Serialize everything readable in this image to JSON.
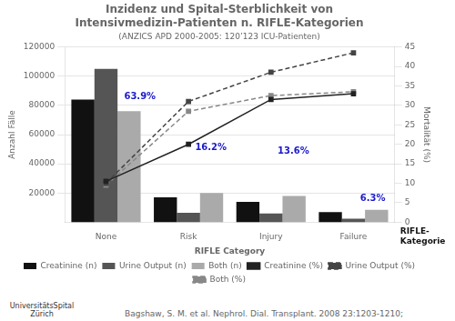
{
  "chart_data": {
    "type": "bar",
    "title": [
      "Inzidenz und Spital-Sterblichkeit von",
      "Intensivmedizin-Patienten n. RIFLE-Kategorien"
    ],
    "subtitle": "(ANZICS APD 2000-2005: 120’123 ICU-Patienten)",
    "categories": [
      "None",
      "Risk",
      "Injury",
      "Failure"
    ],
    "xlabel": "RIFLE Category",
    "ylabel": "Anzahl Fälle",
    "y2label": "Mortalität (%)",
    "series": [
      {
        "name": "Creatinine (n)",
        "type": "bar",
        "color": "#111111",
        "values": [
          84000,
          17000,
          14000,
          7000
        ]
      },
      {
        "name": "Urine Output (n)",
        "type": "bar",
        "color": "#555555",
        "values": [
          105000,
          6500,
          6000,
          2500
        ]
      },
      {
        "name": "Both (n)",
        "type": "bar",
        "color": "#aaaaaa",
        "values": [
          76000,
          20000,
          18000,
          8500
        ]
      },
      {
        "name": "Creatinine (%)",
        "type": "line",
        "axis": "y2",
        "color": "#222222",
        "marker": "square",
        "line_style": "solid",
        "values": [
          10.5,
          20.0,
          31.5,
          33.0
        ]
      },
      {
        "name": "Urine Output (%)",
        "type": "line",
        "axis": "y2",
        "color": "#444444",
        "marker": "square",
        "line_style": "dashed",
        "values": [
          10.0,
          31.0,
          38.5,
          43.5
        ]
      },
      {
        "name": "Both (%)",
        "type": "line",
        "axis": "y2",
        "color": "#888888",
        "marker": "square",
        "line_style": "dashed",
        "values": [
          9.5,
          28.5,
          32.5,
          33.5
        ]
      }
    ],
    "ylim": [
      0,
      120000
    ],
    "yticks": [
      20000,
      40000,
      60000,
      80000,
      100000,
      120000
    ],
    "y2lim": [
      0,
      45
    ],
    "y2ticks": [
      0,
      5,
      10,
      15,
      20,
      25,
      30,
      35,
      40,
      45
    ],
    "grid": "y",
    "legend": "bottom",
    "annotations": [
      {
        "text": "63.9%",
        "x": 0.22,
        "y": 31.0,
        "color": "#1a1acc"
      },
      {
        "text": "16.2%",
        "x": 1.08,
        "y": 18.0,
        "color": "#1a1acc"
      },
      {
        "text": "13.6%",
        "x": 2.08,
        "y": 17.0,
        "color": "#1a1acc"
      },
      {
        "text": "6.3%",
        "x": 3.08,
        "y": 5.0,
        "color": "#1a1acc"
      }
    ],
    "texts": [
      "RIFLE-\nKategorie",
      "Universitäts­Spital\nZürich"
    ],
    "source": "Bagshaw, S. M. et al. Nephrol. Dial. Transplant. 2008 23:1203-1210;"
  }
}
